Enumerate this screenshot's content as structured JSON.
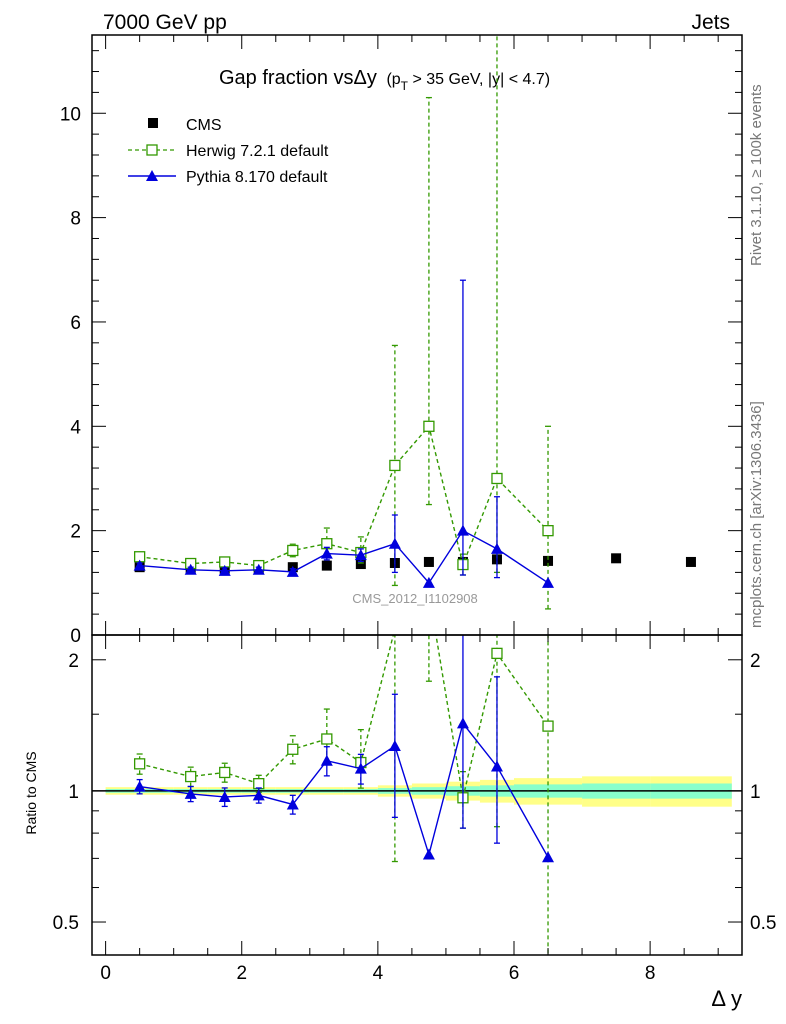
{
  "header": {
    "left": "7000 GeV pp",
    "right": "Jets"
  },
  "side_labels": {
    "rivet": "Rivet 3.1.10, ≥ 100k events",
    "mcplots": "mcplots.cern.ch [arXiv:1306.3436]"
  },
  "chart_data": {
    "type": "scatter",
    "title": "Gap fraction vsΔy",
    "title_sub": "(p",
    "title_sub_T": "T",
    "title_cuts": " > 35 GeV, |y| < 4.7)",
    "watermark": "CMS_2012_I1102908",
    "xlabel": "Δ y",
    "ylabel_ratio": "Ratio to CMS",
    "xlim": [
      -0.2,
      9.35
    ],
    "ylim_main": [
      0,
      11.5
    ],
    "ylim_ratio": [
      0.42,
      2.28
    ],
    "x_ticks": [
      "0",
      "2",
      "4",
      "6",
      "8"
    ],
    "y_ticks_main": [
      "0",
      "2",
      "4",
      "6",
      "8",
      "10"
    ],
    "y_ticks_ratio": [
      "0.5",
      "1",
      "2"
    ],
    "legend": [
      "CMS",
      "Herwig 7.2.1 default",
      "Pythia 8.170 default"
    ],
    "colors": {
      "data": "#000000",
      "herwig": "#339900",
      "pythia": "#0000dd",
      "band_outer": "#ffff88",
      "band_inner": "#88ffcc"
    },
    "data": {
      "x": [
        0.5,
        1.25,
        1.75,
        2.25,
        2.75,
        3.25,
        3.75,
        4.25,
        4.75,
        5.25,
        5.75,
        6.5,
        7.5,
        8.6
      ],
      "xlo": [
        0.0,
        1.0,
        1.5,
        2.0,
        2.5,
        3.0,
        3.5,
        4.0,
        4.5,
        5.0,
        5.5,
        6.0,
        7.0,
        8.0
      ],
      "xhi": [
        1.0,
        1.5,
        2.0,
        2.5,
        3.0,
        3.5,
        4.0,
        4.5,
        5.0,
        5.5,
        6.0,
        7.0,
        8.0,
        9.2
      ],
      "y": [
        1.3,
        1.27,
        1.27,
        1.28,
        1.3,
        1.33,
        1.36,
        1.38,
        1.4,
        1.4,
        1.45,
        1.42,
        1.47,
        1.4
      ],
      "rel_err": [
        0.01,
        0.01,
        0.01,
        0.01,
        0.01,
        0.01,
        0.01,
        0.015,
        0.02,
        0.025,
        0.03,
        0.035,
        0.04,
        0.04
      ]
    },
    "herwig": {
      "x": [
        0.5,
        1.25,
        1.75,
        2.25,
        2.75,
        3.25,
        3.75,
        4.25,
        4.75,
        5.25,
        5.75,
        6.5
      ],
      "y": [
        1.5,
        1.37,
        1.4,
        1.33,
        1.62,
        1.75,
        1.58,
        3.25,
        4.0,
        1.35,
        3.0,
        2.0
      ],
      "elo": [
        0.08,
        0.07,
        0.07,
        0.06,
        0.12,
        0.2,
        0.2,
        2.3,
        1.5,
        0.2,
        1.8,
        1.5
      ],
      "ehi": [
        0.08,
        0.07,
        0.07,
        0.06,
        0.12,
        0.3,
        0.3,
        2.3,
        6.3,
        0.2,
        9.0,
        2.0
      ]
    },
    "pythia": {
      "x": [
        0.5,
        1.25,
        1.75,
        2.25,
        2.75,
        3.25,
        3.75,
        4.25,
        4.75,
        5.25,
        5.75,
        6.5
      ],
      "y": [
        1.33,
        1.25,
        1.23,
        1.25,
        1.21,
        1.56,
        1.53,
        1.75,
        1.0,
        2.0,
        1.65,
        1.0
      ],
      "elo": [
        0.05,
        0.05,
        0.06,
        0.05,
        0.06,
        0.12,
        0.12,
        0.55,
        0.0,
        0.85,
        0.55,
        0.0
      ],
      "ehi": [
        0.05,
        0.05,
        0.06,
        0.05,
        0.06,
        0.12,
        0.12,
        0.55,
        0.0,
        4.8,
        1.0,
        0.0
      ]
    }
  }
}
